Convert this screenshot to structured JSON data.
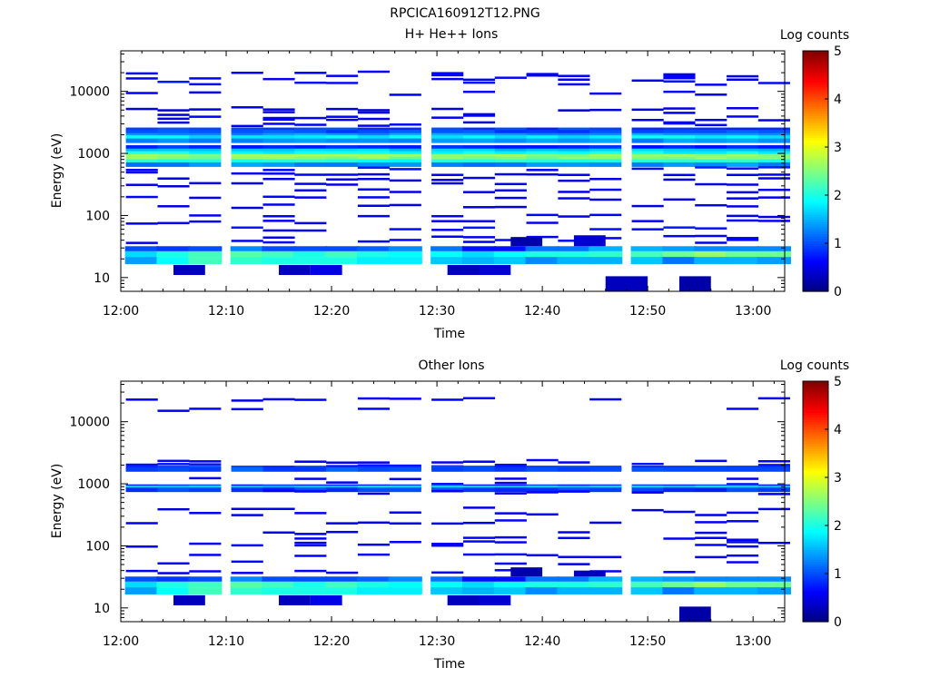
{
  "figure_title": "RPCICA160912T12.PNG",
  "chart_data": [
    {
      "type": "heatmap",
      "title": "H+ He++ Ions",
      "xlabel": "Time",
      "ylabel": "Energy (eV)",
      "y_scale": "log",
      "ylim": [
        6,
        45000
      ],
      "xlim": [
        "12:00",
        "13:03"
      ],
      "x_ticks": [
        "12:00",
        "12:10",
        "12:20",
        "12:30",
        "12:40",
        "12:50",
        "13:00"
      ],
      "y_ticks": [
        "10",
        "100",
        "1000",
        "10000"
      ],
      "colorbar": {
        "label": "Log counts",
        "min": 0,
        "max": 5,
        "ticks": [
          "0",
          "1",
          "2",
          "3",
          "4",
          "5"
        ],
        "colormap": "jet"
      },
      "time_bins": [
        "12:02",
        "12:05",
        "12:08",
        "12:12",
        "12:15",
        "12:18",
        "12:21",
        "12:24",
        "12:27",
        "12:31",
        "12:34",
        "12:37",
        "12:40",
        "12:43",
        "12:46",
        "12:50",
        "12:53",
        "12:56",
        "12:59",
        "13:02"
      ],
      "lines": [
        {
          "e": 19500,
          "v": 0.5
        },
        {
          "e": 17000,
          "v": 0.5
        },
        {
          "e": 15500,
          "v": 0.5
        },
        {
          "e": 13500,
          "v": 0.6
        },
        {
          "e": 9200,
          "v": 0.5
        },
        {
          "e": 5200,
          "v": 0.4
        },
        {
          "e": 4400,
          "v": 0.4
        },
        {
          "e": 3800,
          "v": 0.5
        },
        {
          "e": 3300,
          "v": 0.4
        },
        {
          "e": 2900,
          "v": 0.5
        },
        {
          "e": 2400,
          "v": 0.9
        },
        {
          "e": 2200,
          "v": 1.0
        },
        {
          "e": 1950,
          "v": 1.4
        },
        {
          "e": 1800,
          "v": 1.8
        },
        {
          "e": 1600,
          "v": 1.3
        },
        {
          "e": 1250,
          "v": 0.8
        },
        {
          "e": 1100,
          "v": 1.6
        },
        {
          "e": 1000,
          "v": 1.9
        },
        {
          "e": 900,
          "v": 2.6
        },
        {
          "e": 820,
          "v": 2.5
        },
        {
          "e": 740,
          "v": 2.0
        },
        {
          "e": 660,
          "v": 1.3
        },
        {
          "e": 560,
          "v": 0.6
        },
        {
          "e": 470,
          "v": 0.5
        },
        {
          "e": 380,
          "v": 0.4
        },
        {
          "e": 310,
          "v": 0.4
        },
        {
          "e": 250,
          "v": 0.5
        },
        {
          "e": 190,
          "v": 0.5
        },
        {
          "e": 140,
          "v": 0.4
        },
        {
          "e": 100,
          "v": 0.5
        },
        {
          "e": 78,
          "v": 0.5
        },
        {
          "e": 60,
          "v": 0.6
        },
        {
          "e": 45,
          "v": 0.5
        },
        {
          "e": 38,
          "v": 0.5
        }
      ],
      "low_bands": [
        {
          "e0": 26.5,
          "e1": 32,
          "values": [
            1.0,
            0.9,
            1.0,
            1.3,
            1.0,
            1.0,
            1.0,
            1.1,
            1.3,
            1.2,
            0.7,
            0.7,
            1.2,
            1.2,
            1.5,
            1.5,
            1.4,
            1.3,
            1.3,
            1.3
          ]
        },
        {
          "e0": 21.5,
          "e1": 26.5,
          "values": [
            1.7,
            2.0,
            2.2,
            2.3,
            2.2,
            2.0,
            2.2,
            2.0,
            1.9,
            1.9,
            1.7,
            1.9,
            2.0,
            2.0,
            2.1,
            2.2,
            2.4,
            2.6,
            2.4,
            2.4
          ]
        },
        {
          "e0": 16.5,
          "e1": 21.5,
          "values": [
            1.4,
            1.9,
            2.2,
            2.1,
            2.0,
            2.0,
            2.0,
            1.8,
            1.8,
            1.6,
            1.5,
            1.6,
            1.3,
            1.5,
            1.5,
            1.6,
            1.2,
            1.5,
            1.5,
            1.4
          ]
        }
      ],
      "sparse_blocks": [
        {
          "t0": "12:05",
          "t1": "12:08",
          "e0": 11,
          "e1": 16,
          "v": 0.3
        },
        {
          "t0": "12:15",
          "t1": "12:18",
          "e0": 11,
          "e1": 16,
          "v": 0.3
        },
        {
          "t0": "12:18",
          "t1": "12:21",
          "e0": 11,
          "e1": 16,
          "v": 0.5
        },
        {
          "t0": "12:31",
          "t1": "12:34",
          "e0": 11,
          "e1": 16,
          "v": 0.3
        },
        {
          "t0": "12:34",
          "t1": "12:37",
          "e0": 11,
          "e1": 16,
          "v": 0.4
        },
        {
          "t0": "12:37",
          "t1": "12:40",
          "e0": 32,
          "e1": 45,
          "v": 0.2
        },
        {
          "t0": "12:43",
          "t1": "12:46",
          "e0": 32,
          "e1": 48,
          "v": 0.4
        },
        {
          "t0": "12:46",
          "t1": "12:50",
          "e0": 6,
          "e1": 10.5,
          "v": 0.3
        },
        {
          "t0": "12:53",
          "t1": "12:56",
          "e0": 6,
          "e1": 10.5,
          "v": 0.2
        }
      ]
    },
    {
      "type": "heatmap",
      "title": "Other Ions",
      "xlabel": "Time",
      "ylabel": "Energy (eV)",
      "y_scale": "log",
      "ylim": [
        6,
        45000
      ],
      "xlim": [
        "12:00",
        "13:03"
      ],
      "x_ticks": [
        "12:00",
        "12:10",
        "12:20",
        "12:30",
        "12:40",
        "12:50",
        "13:00"
      ],
      "y_ticks": [
        "10",
        "100",
        "1000",
        "10000"
      ],
      "colorbar": {
        "label": "Log counts",
        "min": 0,
        "max": 5,
        "ticks": [
          "0",
          "1",
          "2",
          "3",
          "4",
          "5"
        ],
        "colormap": "jet"
      },
      "time_bins": [
        "12:02",
        "12:05",
        "12:08",
        "12:12",
        "12:15",
        "12:18",
        "12:21",
        "12:24",
        "12:27",
        "12:31",
        "12:34",
        "12:37",
        "12:40",
        "12:43",
        "12:46",
        "12:50",
        "12:53",
        "12:56",
        "12:59",
        "13:02"
      ],
      "lines": [
        {
          "e": 23000,
          "v": 0.5
        },
        {
          "e": 15500,
          "v": 0.5
        },
        {
          "e": 2250,
          "v": 0.5
        },
        {
          "e": 2000,
          "v": 0.6
        },
        {
          "e": 1800,
          "v": 0.9
        },
        {
          "e": 1700,
          "v": 1.0
        },
        {
          "e": 1250,
          "v": 0.5
        },
        {
          "e": 1000,
          "v": 0.5
        },
        {
          "e": 900,
          "v": 0.9
        },
        {
          "e": 860,
          "v": 1.6
        },
        {
          "e": 800,
          "v": 0.9
        },
        {
          "e": 720,
          "v": 0.5
        },
        {
          "e": 390,
          "v": 0.4
        },
        {
          "e": 330,
          "v": 0.5
        },
        {
          "e": 240,
          "v": 0.5
        },
        {
          "e": 160,
          "v": 0.4
        },
        {
          "e": 130,
          "v": 0.5
        },
        {
          "e": 110,
          "v": 0.5
        },
        {
          "e": 97,
          "v": 0.5
        },
        {
          "e": 68,
          "v": 0.5
        },
        {
          "e": 52,
          "v": 0.5
        },
        {
          "e": 38,
          "v": 0.5
        }
      ],
      "low_bands": [
        {
          "e0": 26.5,
          "e1": 32,
          "values": [
            1.0,
            0.9,
            1.0,
            1.3,
            1.0,
            1.0,
            1.0,
            1.1,
            1.3,
            1.2,
            0.7,
            0.7,
            1.2,
            1.2,
            1.5,
            1.5,
            1.4,
            1.3,
            1.3,
            1.3
          ]
        },
        {
          "e0": 21.5,
          "e1": 26.5,
          "values": [
            1.7,
            2.0,
            2.2,
            2.3,
            2.2,
            2.0,
            2.2,
            2.0,
            1.9,
            1.9,
            1.7,
            1.9,
            2.0,
            2.0,
            2.1,
            2.2,
            2.4,
            2.6,
            2.4,
            2.4
          ]
        },
        {
          "e0": 16.5,
          "e1": 21.5,
          "values": [
            1.4,
            1.9,
            2.2,
            2.1,
            2.0,
            2.0,
            2.0,
            1.8,
            1.8,
            1.6,
            1.5,
            1.6,
            1.3,
            1.5,
            1.5,
            1.6,
            1.2,
            1.5,
            1.5,
            1.4
          ]
        }
      ],
      "sparse_blocks": [
        {
          "t0": "12:05",
          "t1": "12:08",
          "e0": 11,
          "e1": 16,
          "v": 0.3
        },
        {
          "t0": "12:15",
          "t1": "12:18",
          "e0": 11,
          "e1": 16,
          "v": 0.3
        },
        {
          "t0": "12:18",
          "t1": "12:21",
          "e0": 11,
          "e1": 16,
          "v": 0.5
        },
        {
          "t0": "12:31",
          "t1": "12:34",
          "e0": 11,
          "e1": 16,
          "v": 0.3
        },
        {
          "t0": "12:34",
          "t1": "12:37",
          "e0": 11,
          "e1": 16,
          "v": 0.4
        },
        {
          "t0": "12:37",
          "t1": "12:40",
          "e0": 32,
          "e1": 45,
          "v": 0.2
        },
        {
          "t0": "12:43",
          "t1": "12:46",
          "e0": 32,
          "e1": 40,
          "v": 0.3
        },
        {
          "t0": "12:53",
          "t1": "12:56",
          "e0": 6,
          "e1": 10.5,
          "v": 0.2
        }
      ]
    }
  ]
}
